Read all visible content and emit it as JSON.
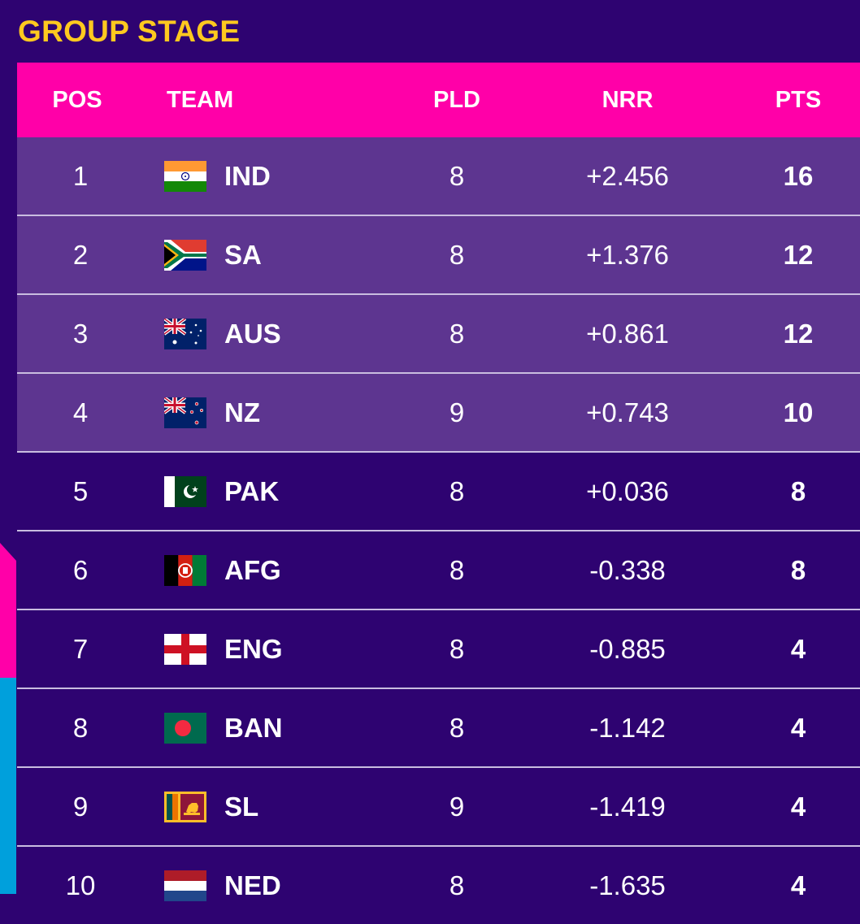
{
  "title": "GROUP STAGE",
  "headers": {
    "pos": "POS",
    "team": "TEAM",
    "pld": "PLD",
    "nrr": "NRR",
    "pts": "PTS"
  },
  "colors": {
    "background": "#2e0371",
    "header": "#ff00a8",
    "highlight_row": "#5d3590",
    "title": "#ffc91f"
  },
  "rows": [
    {
      "pos": "1",
      "team": "IND",
      "flag": "india-flag-icon",
      "pld": "8",
      "nrr": "+2.456",
      "pts": "16"
    },
    {
      "pos": "2",
      "team": "SA",
      "flag": "south-africa-flag-icon",
      "pld": "8",
      "nrr": "+1.376",
      "pts": "12"
    },
    {
      "pos": "3",
      "team": "AUS",
      "flag": "australia-flag-icon",
      "pld": "8",
      "nrr": "+0.861",
      "pts": "12"
    },
    {
      "pos": "4",
      "team": "NZ",
      "flag": "new-zealand-flag-icon",
      "pld": "9",
      "nrr": "+0.743",
      "pts": "10"
    },
    {
      "pos": "5",
      "team": "PAK",
      "flag": "pakistan-flag-icon",
      "pld": "8",
      "nrr": "+0.036",
      "pts": "8"
    },
    {
      "pos": "6",
      "team": "AFG",
      "flag": "afghanistan-flag-icon",
      "pld": "8",
      "nrr": "-0.338",
      "pts": "8"
    },
    {
      "pos": "7",
      "team": "ENG",
      "flag": "england-flag-icon",
      "pld": "8",
      "nrr": "-0.885",
      "pts": "4"
    },
    {
      "pos": "8",
      "team": "BAN",
      "flag": "bangladesh-flag-icon",
      "pld": "8",
      "nrr": "-1.142",
      "pts": "4"
    },
    {
      "pos": "9",
      "team": "SL",
      "flag": "sri-lanka-flag-icon",
      "pld": "9",
      "nrr": "-1.419",
      "pts": "4"
    },
    {
      "pos": "10",
      "team": "NED",
      "flag": "netherlands-flag-icon",
      "pld": "8",
      "nrr": "-1.635",
      "pts": "4"
    }
  ]
}
